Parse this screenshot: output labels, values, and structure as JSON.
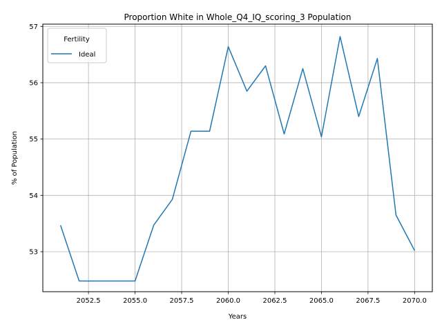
{
  "chart_data": {
    "type": "line",
    "title": "Proportion White in Whole_Q4_IQ_scoring_3 Population",
    "xlabel": "Years",
    "ylabel": "% of Population",
    "xlim": [
      2050.05,
      2070.95
    ],
    "ylim": [
      52.29,
      57.04
    ],
    "xticks": [
      2052.5,
      2055.0,
      2057.5,
      2060.0,
      2062.5,
      2065.0,
      2067.5,
      2070.0
    ],
    "xtick_labels": [
      "2052.5",
      "2055.0",
      "2057.5",
      "2060.0",
      "2062.5",
      "2065.0",
      "2067.5",
      "2070.0"
    ],
    "yticks": [
      53,
      54,
      55,
      56,
      57
    ],
    "ytick_labels": [
      "53",
      "54",
      "55",
      "56",
      "57"
    ],
    "grid": true,
    "legend": {
      "title": "Fertility",
      "placement": "top-left"
    },
    "series": [
      {
        "name": "Ideal",
        "color": "#1f77b4",
        "x": [
          2051,
          2052,
          2053,
          2054,
          2055,
          2056,
          2057,
          2058,
          2059,
          2060,
          2061,
          2062,
          2063,
          2064,
          2065,
          2066,
          2067,
          2068,
          2069,
          2070
        ],
        "y": [
          53.47,
          52.48,
          52.48,
          52.48,
          52.48,
          53.47,
          53.93,
          55.14,
          55.14,
          56.64,
          55.85,
          56.3,
          55.09,
          56.25,
          55.04,
          56.82,
          55.4,
          56.43,
          53.65,
          53.02
        ]
      }
    ]
  }
}
